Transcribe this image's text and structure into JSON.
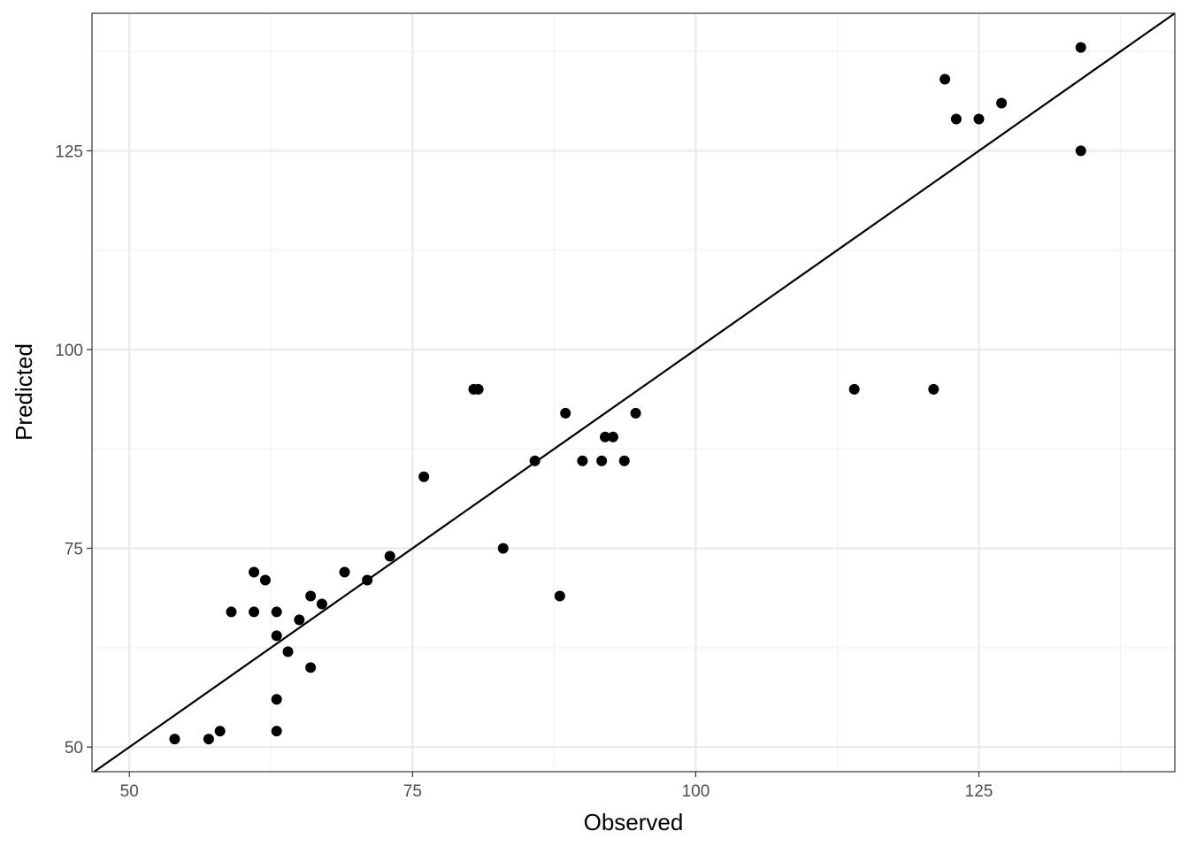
{
  "chart_data": {
    "type": "scatter",
    "title": "",
    "xlabel": "Observed",
    "ylabel": "Predicted",
    "xlim": [
      46.7,
      142.3
    ],
    "ylim": [
      46.9,
      142.3
    ],
    "xticks": [
      50,
      75,
      100,
      125
    ],
    "yticks": [
      50,
      75,
      100,
      125
    ],
    "x_minor": [
      62.5,
      87.5,
      112.5,
      137.5
    ],
    "y_minor": [
      62.5,
      87.5,
      112.5,
      137.5
    ],
    "grid": true,
    "reference_line": {
      "type": "identity",
      "slope": 1,
      "intercept": 0,
      "color": "#000000"
    },
    "point_color": "#000000",
    "points": [
      [
        54,
        51
      ],
      [
        57,
        51
      ],
      [
        58,
        52
      ],
      [
        59,
        67
      ],
      [
        61,
        67
      ],
      [
        61,
        72
      ],
      [
        62,
        71
      ],
      [
        63,
        67
      ],
      [
        63,
        64
      ],
      [
        63,
        56
      ],
      [
        63,
        52
      ],
      [
        64,
        62
      ],
      [
        65,
        66
      ],
      [
        66,
        69
      ],
      [
        66,
        60
      ],
      [
        67,
        68
      ],
      [
        69,
        72
      ],
      [
        71,
        71
      ],
      [
        73,
        74
      ],
      [
        76,
        84
      ],
      [
        80.4,
        95
      ],
      [
        80.8,
        95
      ],
      [
        83,
        75
      ],
      [
        85.8,
        86
      ],
      [
        88,
        69
      ],
      [
        88.5,
        92
      ],
      [
        90,
        86
      ],
      [
        91.7,
        86
      ],
      [
        92,
        89
      ],
      [
        92.7,
        89
      ],
      [
        93.7,
        86
      ],
      [
        94.7,
        92
      ],
      [
        114,
        95
      ],
      [
        121,
        95
      ],
      [
        122,
        134
      ],
      [
        123,
        129
      ],
      [
        125,
        129
      ],
      [
        127,
        131
      ],
      [
        134,
        138
      ],
      [
        134,
        125
      ]
    ]
  }
}
